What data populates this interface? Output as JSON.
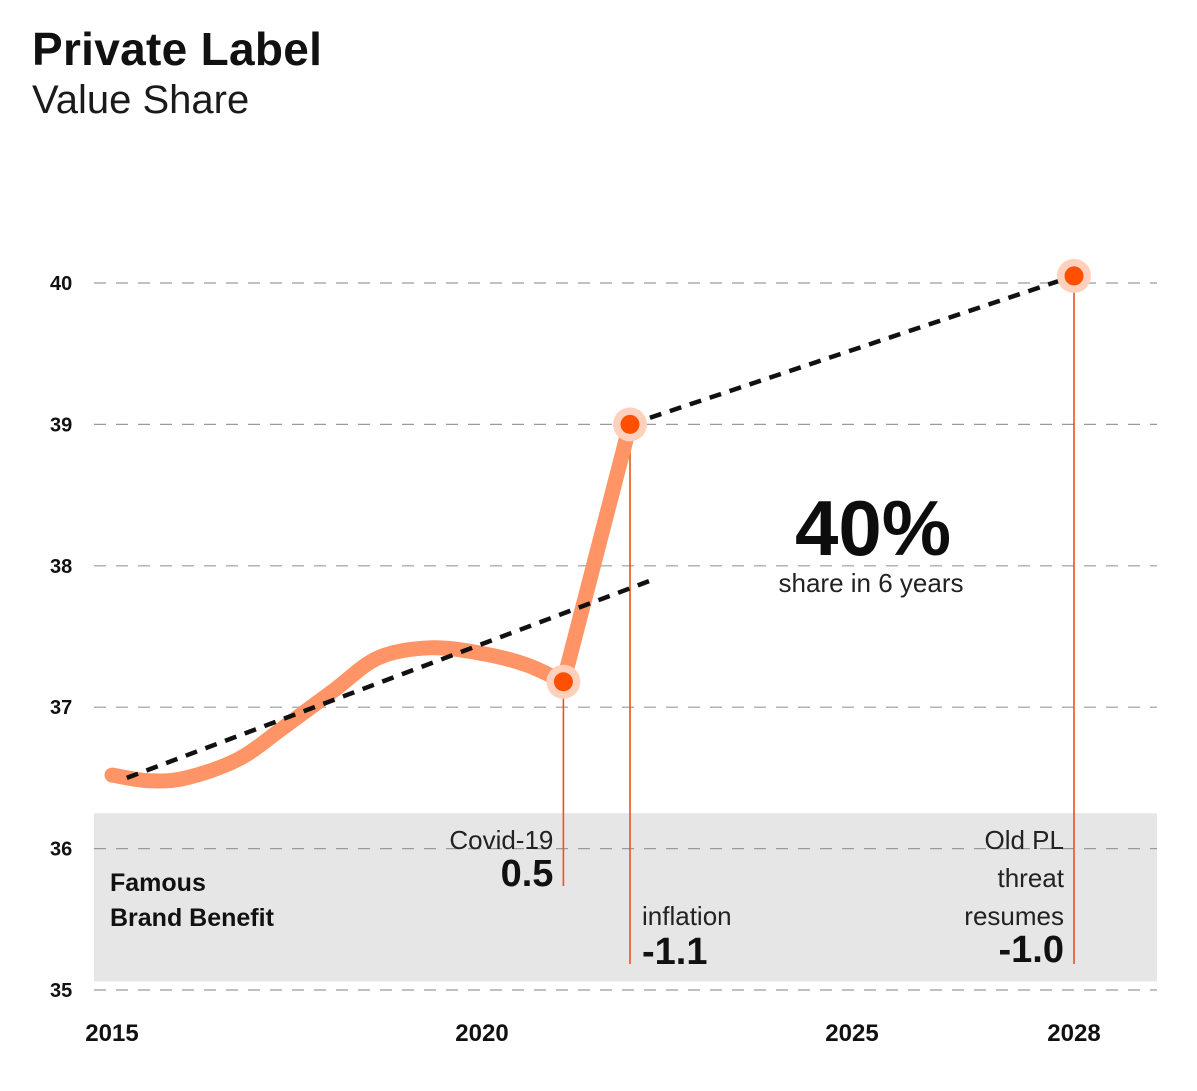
{
  "header": {
    "title": "Private Label",
    "subtitle": "Value Share"
  },
  "colors": {
    "main_line": "#ff9466",
    "marker": "#ff4f00",
    "marker_halo": "#ffd0bc",
    "drop_line": "#e8541a",
    "trend": "#111111",
    "band": "#e6e6e6",
    "grid": "#9a9a9a"
  },
  "chart_data": {
    "type": "line",
    "title": "Private Label",
    "subtitle": "Value Share",
    "xlabel": "",
    "ylabel": "",
    "xlim": [
      2015,
      2028.8
    ],
    "ylim": [
      35,
      40
    ],
    "x_ticks": [
      2015,
      2020,
      2025,
      2028
    ],
    "y_ticks": [
      35,
      36,
      37,
      38,
      39,
      40
    ],
    "grid": "horizontal dashed",
    "series": [
      {
        "kind": "actual",
        "x": [
          2015.0,
          2015.5,
          2016.0,
          2016.7,
          2017.3,
          2018.0,
          2018.6,
          2019.3,
          2020.0,
          2020.6,
          2021.1,
          2022.0
        ],
        "y": [
          36.52,
          36.48,
          36.5,
          36.63,
          36.85,
          37.12,
          37.35,
          37.42,
          37.38,
          37.3,
          37.18,
          39.0
        ]
      },
      {
        "kind": "trend-pre",
        "x": [
          2015.2,
          2022.3
        ],
        "y": [
          36.5,
          37.9
        ]
      },
      {
        "kind": "trend-post",
        "x": [
          2022.0,
          2028.0
        ],
        "y": [
          39.0,
          40.05
        ]
      }
    ],
    "markers": [
      {
        "x": 2021.1,
        "y": 37.18
      },
      {
        "x": 2022.0,
        "y": 39.0
      },
      {
        "x": 2028.0,
        "y": 40.05
      }
    ],
    "band": {
      "y_from": 35.06,
      "y_to": 36.25,
      "label_line1": "Famous",
      "label_line2": "Brand Benefit"
    },
    "annotations": [
      {
        "lines": [
          "Covid-19"
        ],
        "value": "0.5",
        "x": 2021.1
      },
      {
        "lines": [
          "inflation"
        ],
        "value": "-1.1",
        "x": 2022.0
      },
      {
        "lines": [
          "Old PL",
          "threat",
          "resumes"
        ],
        "value": "-1.0",
        "x": 2028.0
      }
    ],
    "highlight": {
      "value": "40%",
      "text": "share in 6 years"
    }
  }
}
